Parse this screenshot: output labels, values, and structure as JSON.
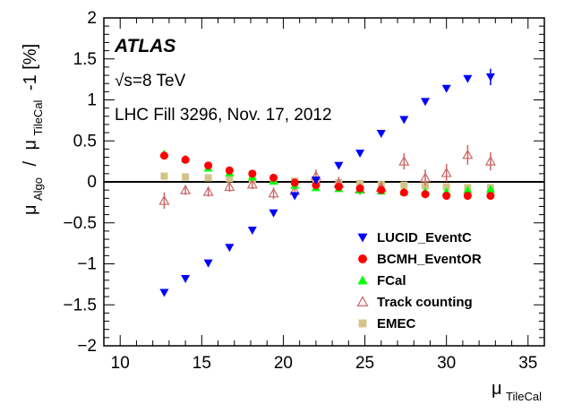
{
  "chart_data": {
    "type": "scatter",
    "title": "",
    "xlabel": "μ",
    "xlabel_sub": "TileCal",
    "ylabel_mu": "μ",
    "ylabel_sub1": "Algo",
    "ylabel_slash": "/",
    "ylabel_sub2": "TileCal",
    "ylabel_rest": "-1 [%]",
    "xlim": [
      9,
      36
    ],
    "ylim": [
      -2,
      2
    ],
    "xticks": [
      10,
      15,
      20,
      25,
      30,
      35
    ],
    "yticks": [
      -2,
      -1.5,
      -1,
      -0.5,
      0,
      0.5,
      1,
      1.5,
      2
    ],
    "xtick_labels": [
      "10",
      "15",
      "20",
      "25",
      "30",
      "35"
    ],
    "ytick_labels": [
      "−2",
      "−1.5",
      "−1",
      "−0.5",
      "0",
      "0.5",
      "1",
      "1.5",
      "2"
    ],
    "zero_line": 0,
    "annotations": {
      "experiment": "ATLAS",
      "energy": "√s=8 TeV",
      "fill": "LHC Fill 3296, Nov. 17, 2012"
    },
    "legend_position": "bottom-right",
    "series": [
      {
        "name": "LUCID_EventC",
        "marker": "triangle-down",
        "color": "#0000ff",
        "x": [
          12.7,
          14.0,
          15.4,
          16.7,
          18.1,
          19.4,
          20.7,
          22.0,
          23.4,
          24.7,
          26.0,
          27.4,
          28.7,
          30.0,
          31.3,
          32.7
        ],
        "y": [
          -1.35,
          -1.18,
          -0.99,
          -0.8,
          -0.59,
          -0.38,
          -0.17,
          0.02,
          0.2,
          0.35,
          0.59,
          0.76,
          0.98,
          1.14,
          1.26,
          1.28
        ],
        "err": [
          0,
          0,
          0,
          0,
          0,
          0,
          0,
          0,
          0,
          0,
          0,
          0,
          0,
          0,
          0,
          0.1
        ]
      },
      {
        "name": "BCMH_EventOR",
        "marker": "circle",
        "color": "#ff0000",
        "x": [
          12.7,
          14.0,
          15.4,
          16.7,
          18.1,
          19.4,
          20.7,
          22.0,
          23.4,
          24.7,
          26.0,
          27.4,
          28.7,
          30.0,
          31.3,
          32.7
        ],
        "y": [
          0.32,
          0.27,
          0.2,
          0.14,
          0.1,
          0.05,
          -0.01,
          -0.04,
          -0.06,
          -0.08,
          -0.1,
          -0.13,
          -0.15,
          -0.17,
          -0.17,
          -0.17
        ],
        "err": [
          0,
          0,
          0,
          0,
          0,
          0,
          0,
          0,
          0,
          0,
          0,
          0,
          0,
          0,
          0,
          0
        ]
      },
      {
        "name": "FCal",
        "marker": "triangle-up",
        "color": "#00ff00",
        "x": [
          12.7,
          14.0,
          15.4,
          16.7,
          18.1,
          19.4,
          20.7,
          22.0,
          23.4,
          24.7,
          26.0,
          27.4,
          28.7,
          30.0,
          31.3,
          32.7
        ],
        "y": [
          0.34,
          0.28,
          0.17,
          0.11,
          0.06,
          0.01,
          -0.04,
          -0.07,
          -0.08,
          -0.1,
          -0.11,
          -0.12,
          -0.12,
          -0.12,
          -0.1,
          -0.09
        ],
        "err": [
          0,
          0,
          0,
          0,
          0,
          0,
          0,
          0,
          0,
          0,
          0,
          0,
          0,
          0,
          0,
          0
        ]
      },
      {
        "name": "Track counting",
        "marker": "triangle-up-open",
        "color": "#cc6666",
        "x": [
          12.7,
          14.0,
          15.4,
          16.7,
          18.1,
          19.4,
          20.7,
          22.0,
          23.4,
          24.7,
          26.0,
          27.4,
          28.7,
          30.0,
          31.3,
          32.7
        ],
        "y": [
          -0.23,
          -0.1,
          -0.12,
          -0.06,
          -0.03,
          -0.14,
          -0.11,
          0.07,
          -0.02,
          -0.09,
          -0.07,
          0.25,
          0.05,
          0.11,
          0.33,
          0.25
        ],
        "err": [
          0.1,
          0.06,
          0.06,
          0.06,
          0.06,
          0.07,
          0.08,
          0.08,
          0.08,
          0.07,
          0.08,
          0.1,
          0.1,
          0.11,
          0.12,
          0.11
        ]
      },
      {
        "name": "EMEC",
        "marker": "square",
        "color": "#d4c48a",
        "x": [
          12.7,
          14.0,
          15.4,
          16.7,
          18.1,
          19.4,
          20.7,
          22.0,
          23.4,
          24.7,
          26.0,
          27.4,
          28.7,
          30.0,
          31.3,
          32.7
        ],
        "y": [
          0.07,
          0.06,
          0.05,
          0.04,
          0.03,
          0.02,
          0.01,
          0.0,
          -0.01,
          -0.02,
          -0.03,
          -0.04,
          -0.05,
          -0.06,
          -0.07,
          -0.07
        ],
        "err": [
          0,
          0,
          0,
          0,
          0,
          0,
          0,
          0,
          0,
          0,
          0,
          0,
          0,
          0,
          0,
          0
        ]
      }
    ]
  }
}
